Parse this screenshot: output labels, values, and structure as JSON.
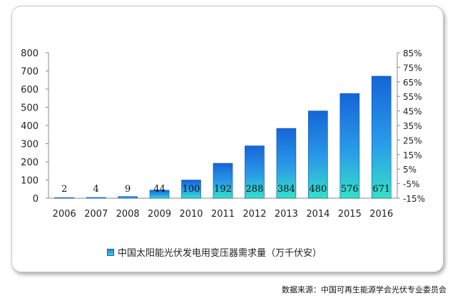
{
  "chart_data": {
    "type": "bar",
    "categories": [
      "2006",
      "2007",
      "2008",
      "2009",
      "2010",
      "2011",
      "2012",
      "2013",
      "2014",
      "2015",
      "2016"
    ],
    "series": [
      {
        "name": "中国太阳能光伏发电用变压器需求量（万千伏安）",
        "values": [
          2,
          4,
          9,
          44,
          100,
          192,
          288,
          384,
          480,
          576,
          671
        ],
        "labels": [
          "2",
          "4",
          "9",
          "44",
          "100",
          "192",
          "288",
          "384",
          "480",
          "576",
          "671"
        ]
      }
    ],
    "y_ticks": [
      "0",
      "100",
      "200",
      "300",
      "400",
      "500",
      "600",
      "700",
      "800"
    ],
    "ylim": [
      0,
      800
    ],
    "y2_ticks": [
      "-15%",
      "-5%",
      "5%",
      "15%",
      "25%",
      "35%",
      "45%",
      "55%",
      "65%",
      "75%",
      "85%"
    ],
    "y2lim": [
      -15,
      85
    ],
    "legend_position": "bottom",
    "grid": false,
    "colors": {
      "bar_top": "#1565d8",
      "bar_mid": "#2a9be8",
      "bar_bottom": "#35e0c8",
      "axis": "#888888"
    }
  },
  "source_text": "数据来源：中国可再生能源学会光伏专业委员会"
}
